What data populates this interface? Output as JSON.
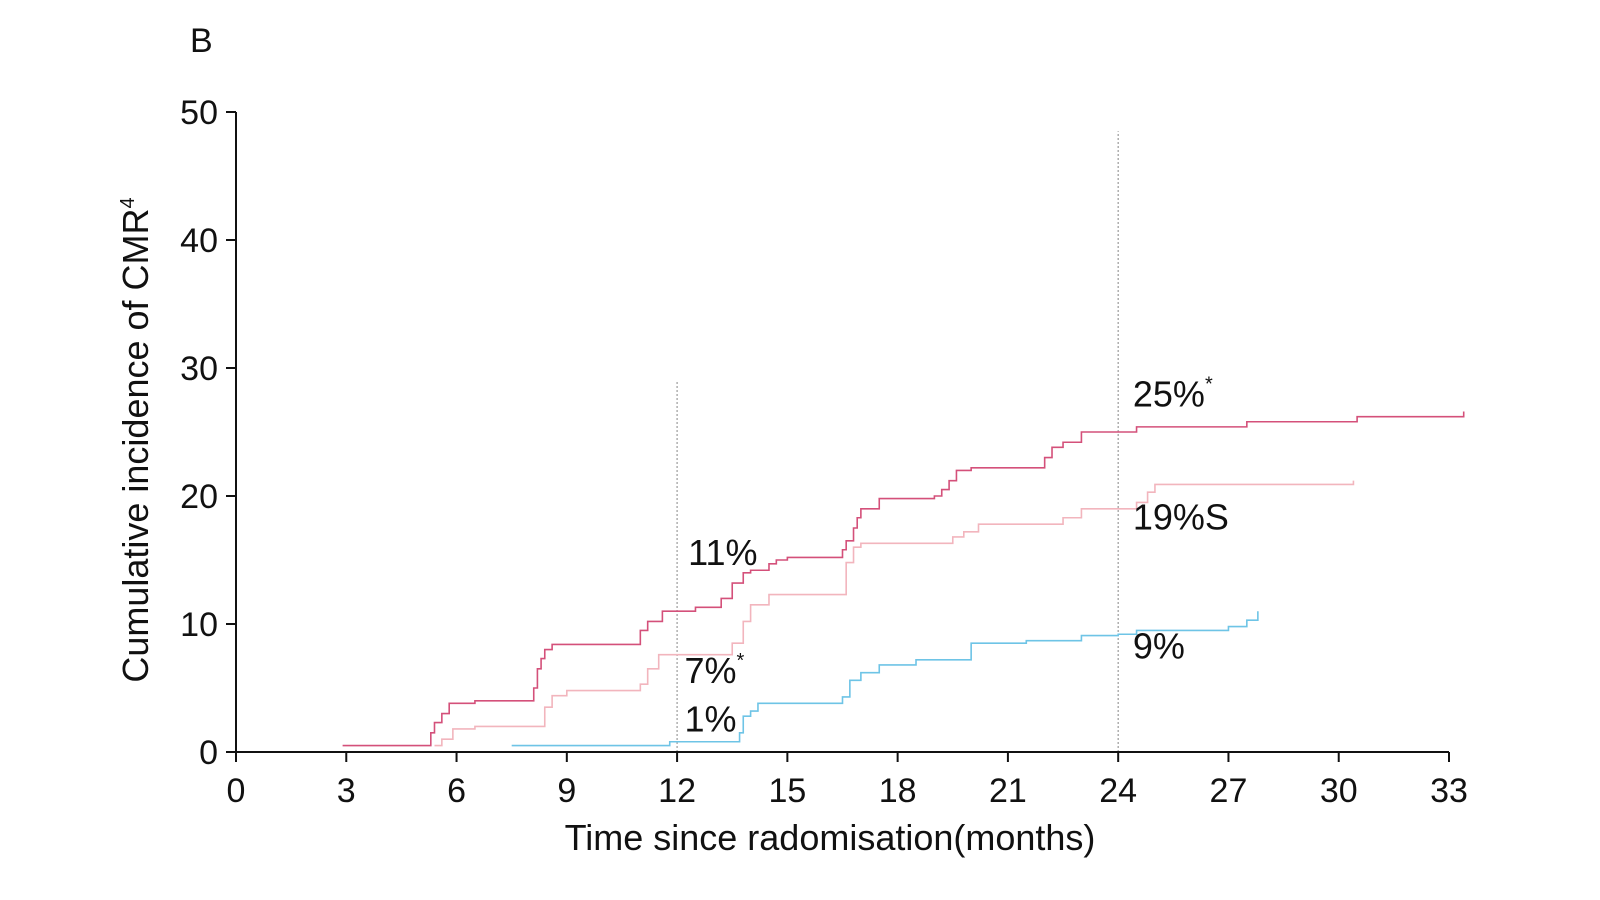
{
  "chart_data": {
    "type": "line",
    "panel_label": "B",
    "xlabel": "Time since radomisation(months)",
    "ylabel": "Cumulative incidence of CMR",
    "ylabel_superscript": "4",
    "xlim": [
      0,
      33
    ],
    "ylim": [
      0,
      50
    ],
    "xticks": [
      "0",
      "3",
      "6",
      "9",
      "12",
      "15",
      "18",
      "21",
      "24",
      "27",
      "30",
      "33"
    ],
    "yticks": [
      "0",
      "10",
      "20",
      "30",
      "40",
      "50"
    ],
    "reference_lines": [
      {
        "x": 12,
        "y_top": 29
      },
      {
        "x": 24,
        "y_top": 48.5
      }
    ],
    "series": [
      {
        "color": "#d4507a",
        "x": [
          2.9,
          5.1,
          5.3,
          5.4,
          5.6,
          5.8,
          6.5,
          8.1,
          8.2,
          8.3,
          8.4,
          8.6,
          10.9,
          11.0,
          11.2,
          11.6,
          12.5,
          13.2,
          13.5,
          13.8,
          14.0,
          14.5,
          14.7,
          15.0,
          16.5,
          16.6,
          16.8,
          16.9,
          17.0,
          17.5,
          19.0,
          19.2,
          19.4,
          19.6,
          20.0,
          22.0,
          22.2,
          22.5,
          23.0,
          24.5,
          27.5,
          30.5,
          33.1,
          33.4
        ],
        "y": [
          0.5,
          0.5,
          1.5,
          2.3,
          3.0,
          3.8,
          4.0,
          5.0,
          6.5,
          7.3,
          8.0,
          8.4,
          8.4,
          9.5,
          10.2,
          11.0,
          11.3,
          12.0,
          13.2,
          14.0,
          14.2,
          14.7,
          15.0,
          15.2,
          15.8,
          16.5,
          17.5,
          18.3,
          19.0,
          19.8,
          20.0,
          20.5,
          21.2,
          22.0,
          22.2,
          23.0,
          23.8,
          24.2,
          25.0,
          25.4,
          25.8,
          26.2,
          26.2,
          26.6
        ]
      },
      {
        "color": "#f2b5bd",
        "x": [
          5.4,
          5.6,
          5.9,
          6.5,
          8.4,
          8.6,
          9.0,
          11.0,
          11.2,
          11.5,
          13.5,
          13.8,
          14.0,
          14.5,
          16.6,
          16.8,
          17.0,
          19.5,
          19.8,
          20.2,
          22.5,
          23.0,
          24.5,
          24.8,
          25.0,
          30.4
        ],
        "y": [
          0.5,
          1.0,
          1.8,
          2.0,
          3.5,
          4.4,
          4.8,
          5.3,
          6.5,
          7.6,
          8.5,
          10.2,
          11.5,
          12.3,
          14.8,
          16.0,
          16.3,
          16.8,
          17.2,
          17.8,
          18.3,
          19.0,
          19.5,
          20.3,
          20.9,
          21.2
        ]
      },
      {
        "color": "#6ec4e6",
        "x": [
          7.5,
          11.8,
          13.7,
          13.8,
          14.0,
          14.2,
          16.5,
          16.7,
          17.0,
          17.5,
          18.5,
          20.0,
          21.5,
          23.0,
          24.0,
          24.5,
          27.0,
          27.5,
          27.8
        ],
        "y": [
          0.5,
          0.8,
          1.5,
          2.8,
          3.2,
          3.8,
          4.3,
          5.6,
          6.2,
          6.8,
          7.2,
          8.5,
          8.7,
          9.1,
          9.2,
          9.5,
          9.8,
          10.3,
          11.0
        ]
      }
    ],
    "annotations": [
      {
        "text": "11%",
        "sup": "",
        "x": 12.3,
        "y": 14.6
      },
      {
        "text": "7%",
        "sup": "*",
        "x": 12.2,
        "y": 5.4
      },
      {
        "text": "1%",
        "sup": "",
        "x": 12.2,
        "y": 1.6
      },
      {
        "text": "25%",
        "sup": "*",
        "x": 24.4,
        "y": 27.0
      },
      {
        "text": "19%S",
        "sup": "",
        "x": 24.4,
        "y": 17.4
      },
      {
        "text": "9%",
        "sup": "",
        "x": 24.4,
        "y": 7.3
      }
    ]
  }
}
